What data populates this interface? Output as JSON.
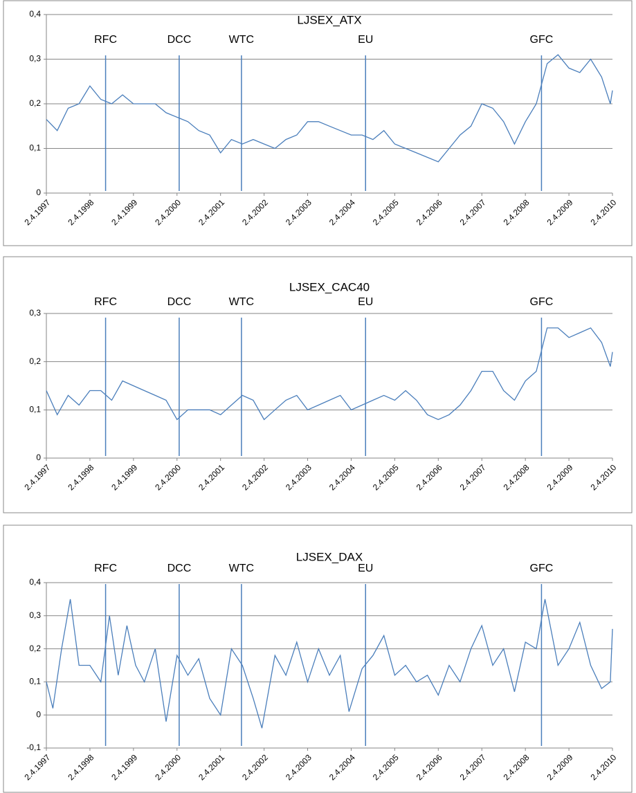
{
  "chart_data": [
    {
      "type": "line",
      "title": "LJSEX_ATX",
      "color": "#4a7ebb",
      "x": [
        1997.25,
        1997.5,
        1997.75,
        1998.0,
        1998.25,
        1998.5,
        1998.75,
        1999.0,
        1999.25,
        1999.5,
        1999.75,
        2000.0,
        2000.25,
        2000.5,
        2000.75,
        2001.0,
        2001.25,
        2001.5,
        2001.75,
        2002.0,
        2002.25,
        2002.5,
        2002.75,
        2003.0,
        2003.25,
        2003.5,
        2003.75,
        2004.0,
        2004.25,
        2004.5,
        2004.75,
        2005.0,
        2005.25,
        2005.5,
        2005.75,
        2006.0,
        2006.25,
        2006.5,
        2006.75,
        2007.0,
        2007.25,
        2007.5,
        2007.75,
        2008.0,
        2008.25,
        2008.5,
        2008.75,
        2009.0,
        2009.25,
        2009.5,
        2009.75,
        2010.0,
        2010.2,
        2010.25
      ],
      "values": [
        0.165,
        0.14,
        0.19,
        0.2,
        0.24,
        0.21,
        0.2,
        0.22,
        0.2,
        0.2,
        0.2,
        0.18,
        0.17,
        0.16,
        0.14,
        0.13,
        0.09,
        0.12,
        0.11,
        0.12,
        0.11,
        0.1,
        0.12,
        0.13,
        0.16,
        0.16,
        0.15,
        0.14,
        0.13,
        0.13,
        0.12,
        0.14,
        0.11,
        0.1,
        0.09,
        0.08,
        0.07,
        0.1,
        0.13,
        0.15,
        0.2,
        0.19,
        0.16,
        0.11,
        0.16,
        0.2,
        0.29,
        0.31,
        0.28,
        0.27,
        0.3,
        0.26,
        0.2,
        0.23
      ],
      "xlim": [
        1997.25,
        2010.25
      ],
      "xticks": [
        {
          "value": 1997.25,
          "label": "2.4.1997"
        },
        {
          "value": 1998.25,
          "label": "2.4.1998"
        },
        {
          "value": 1999.25,
          "label": "2.4.1999"
        },
        {
          "value": 2000.25,
          "label": "2.4.2000"
        },
        {
          "value": 2001.25,
          "label": "2.4.2001"
        },
        {
          "value": 2002.25,
          "label": "2.4.2002"
        },
        {
          "value": 2003.25,
          "label": "2.4.2003"
        },
        {
          "value": 2004.25,
          "label": "2.4.2004"
        },
        {
          "value": 2005.25,
          "label": "2.4.2005"
        },
        {
          "value": 2006.25,
          "label": "2.4.2006"
        },
        {
          "value": 2007.25,
          "label": "2.4.2007"
        },
        {
          "value": 2008.25,
          "label": "2.4.2008"
        },
        {
          "value": 2009.25,
          "label": "2.4.2009"
        },
        {
          "value": 2010.25,
          "label": "2.4.2010"
        }
      ],
      "ylim": [
        0,
        0.4
      ],
      "yticks": [
        0,
        {
          "value": 0.1,
          "label": "0,1"
        },
        {
          "value": 0.2,
          "label": "0,2"
        },
        {
          "value": 0.3,
          "label": "0,3"
        },
        {
          "value": 0.4,
          "label": "0,4"
        }
      ],
      "grid": true,
      "events": [
        {
          "label": "RFC",
          "x": 1998.61
        },
        {
          "label": "DCC",
          "x": 2000.3
        },
        {
          "label": "WTC",
          "x": 2001.73
        },
        {
          "label": "EU",
          "x": 2004.58
        },
        {
          "label": "GFC",
          "x": 2008.62
        }
      ]
    },
    {
      "type": "line",
      "title": "LJSEX_CAC40",
      "color": "#4a7ebb",
      "x": [
        1997.25,
        1997.5,
        1997.75,
        1998.0,
        1998.25,
        1998.5,
        1998.75,
        1999.0,
        1999.25,
        1999.5,
        1999.75,
        2000.0,
        2000.25,
        2000.5,
        2000.75,
        2001.0,
        2001.25,
        2001.5,
        2001.75,
        2002.0,
        2002.25,
        2002.5,
        2002.75,
        2003.0,
        2003.25,
        2003.5,
        2003.75,
        2004.0,
        2004.25,
        2004.5,
        2004.75,
        2005.0,
        2005.25,
        2005.5,
        2005.75,
        2006.0,
        2006.25,
        2006.5,
        2006.75,
        2007.0,
        2007.25,
        2007.5,
        2007.75,
        2008.0,
        2008.25,
        2008.5,
        2008.75,
        2009.0,
        2009.25,
        2009.5,
        2009.75,
        2010.0,
        2010.2,
        2010.25
      ],
      "values": [
        0.14,
        0.09,
        0.13,
        0.11,
        0.14,
        0.14,
        0.12,
        0.16,
        0.15,
        0.14,
        0.13,
        0.12,
        0.08,
        0.1,
        0.1,
        0.1,
        0.09,
        0.11,
        0.13,
        0.12,
        0.08,
        0.1,
        0.12,
        0.13,
        0.1,
        0.11,
        0.12,
        0.13,
        0.1,
        0.11,
        0.12,
        0.13,
        0.12,
        0.14,
        0.12,
        0.09,
        0.08,
        0.09,
        0.11,
        0.14,
        0.18,
        0.18,
        0.14,
        0.12,
        0.16,
        0.18,
        0.27,
        0.27,
        0.25,
        0.26,
        0.27,
        0.24,
        0.19,
        0.22
      ],
      "xlim": [
        1997.25,
        2010.25
      ],
      "xticks": [
        {
          "value": 1997.25,
          "label": "2.4.1997"
        },
        {
          "value": 1998.25,
          "label": "2.4.1998"
        },
        {
          "value": 1999.25,
          "label": "2.4.1999"
        },
        {
          "value": 2000.25,
          "label": "2.4.2000"
        },
        {
          "value": 2001.25,
          "label": "2.4.2001"
        },
        {
          "value": 2002.25,
          "label": "2.4.2002"
        },
        {
          "value": 2003.25,
          "label": "2.4.2003"
        },
        {
          "value": 2004.25,
          "label": "2.4.2004"
        },
        {
          "value": 2005.25,
          "label": "2.4.2005"
        },
        {
          "value": 2006.25,
          "label": "2.4.2006"
        },
        {
          "value": 2007.25,
          "label": "2.4.2007"
        },
        {
          "value": 2008.25,
          "label": "2.4.2008"
        },
        {
          "value": 2009.25,
          "label": "2.4.2009"
        },
        {
          "value": 2010.25,
          "label": "2.4.2010"
        }
      ],
      "ylim": [
        0,
        0.3
      ],
      "yticks": [
        0,
        {
          "value": 0.1,
          "label": "0,1"
        },
        {
          "value": 0.2,
          "label": "0,2"
        },
        {
          "value": 0.3,
          "label": "0,3"
        }
      ],
      "grid": true,
      "events": [
        {
          "label": "RFC",
          "x": 1998.61
        },
        {
          "label": "DCC",
          "x": 2000.3
        },
        {
          "label": "WTC",
          "x": 2001.73
        },
        {
          "label": "EU",
          "x": 2004.58
        },
        {
          "label": "GFC",
          "x": 2008.62
        }
      ]
    },
    {
      "type": "line",
      "title": "LJSEX_DAX",
      "color": "#4a7ebb",
      "x": [
        1997.25,
        1997.4,
        1997.6,
        1997.8,
        1998.0,
        1998.25,
        1998.5,
        1998.7,
        1998.9,
        1999.1,
        1999.3,
        1999.5,
        1999.75,
        2000.0,
        2000.25,
        2000.5,
        2000.75,
        2001.0,
        2001.25,
        2001.5,
        2001.75,
        2002.0,
        2002.2,
        2002.5,
        2002.75,
        2003.0,
        2003.25,
        2003.5,
        2003.75,
        2004.0,
        2004.2,
        2004.5,
        2004.75,
        2005.0,
        2005.25,
        2005.5,
        2005.75,
        2006.0,
        2006.25,
        2006.5,
        2006.75,
        2007.0,
        2007.25,
        2007.5,
        2007.75,
        2008.0,
        2008.25,
        2008.5,
        2008.7,
        2009.0,
        2009.25,
        2009.5,
        2009.75,
        2010.0,
        2010.2,
        2010.25
      ],
      "values": [
        0.1,
        0.02,
        0.2,
        0.35,
        0.15,
        0.15,
        0.1,
        0.3,
        0.12,
        0.27,
        0.15,
        0.1,
        0.2,
        -0.02,
        0.18,
        0.12,
        0.17,
        0.05,
        0.0,
        0.2,
        0.15,
        0.05,
        -0.04,
        0.18,
        0.12,
        0.22,
        0.1,
        0.2,
        0.12,
        0.18,
        0.01,
        0.14,
        0.18,
        0.24,
        0.12,
        0.15,
        0.1,
        0.12,
        0.06,
        0.15,
        0.1,
        0.2,
        0.27,
        0.15,
        0.2,
        0.07,
        0.22,
        0.2,
        0.35,
        0.15,
        0.2,
        0.28,
        0.15,
        0.08,
        0.1,
        0.26
      ],
      "xlim": [
        1997.25,
        2010.25
      ],
      "xticks": [
        {
          "value": 1997.25,
          "label": "2.4.1997"
        },
        {
          "value": 1998.25,
          "label": "2.4.1998"
        },
        {
          "value": 1999.25,
          "label": "2.4.1999"
        },
        {
          "value": 2000.25,
          "label": "2.4.2000"
        },
        {
          "value": 2001.25,
          "label": "2.4.2001"
        },
        {
          "value": 2002.25,
          "label": "2.4.2002"
        },
        {
          "value": 2003.25,
          "label": "2.4.2003"
        },
        {
          "value": 2004.25,
          "label": "2.4.2004"
        },
        {
          "value": 2005.25,
          "label": "2.4.2005"
        },
        {
          "value": 2006.25,
          "label": "2.4.2006"
        },
        {
          "value": 2007.25,
          "label": "2.4.2007"
        },
        {
          "value": 2008.25,
          "label": "2.4.2008"
        },
        {
          "value": 2009.25,
          "label": "2.4.2009"
        },
        {
          "value": 2010.25,
          "label": "2.4.2010"
        }
      ],
      "ylim": [
        -0.1,
        0.4
      ],
      "yticks": [
        {
          "value": -0.1,
          "label": "-0,1"
        },
        0,
        {
          "value": 0.1,
          "label": "0,1"
        },
        {
          "value": 0.2,
          "label": "0,2"
        },
        {
          "value": 0.3,
          "label": "0,3"
        },
        {
          "value": 0.4,
          "label": "0,4"
        }
      ],
      "grid": true,
      "events": [
        {
          "label": "RFC",
          "x": 1998.61
        },
        {
          "label": "DCC",
          "x": 2000.3
        },
        {
          "label": "WTC",
          "x": 2001.73
        },
        {
          "label": "EU",
          "x": 2004.58
        },
        {
          "label": "GFC",
          "x": 2008.62
        }
      ]
    }
  ]
}
